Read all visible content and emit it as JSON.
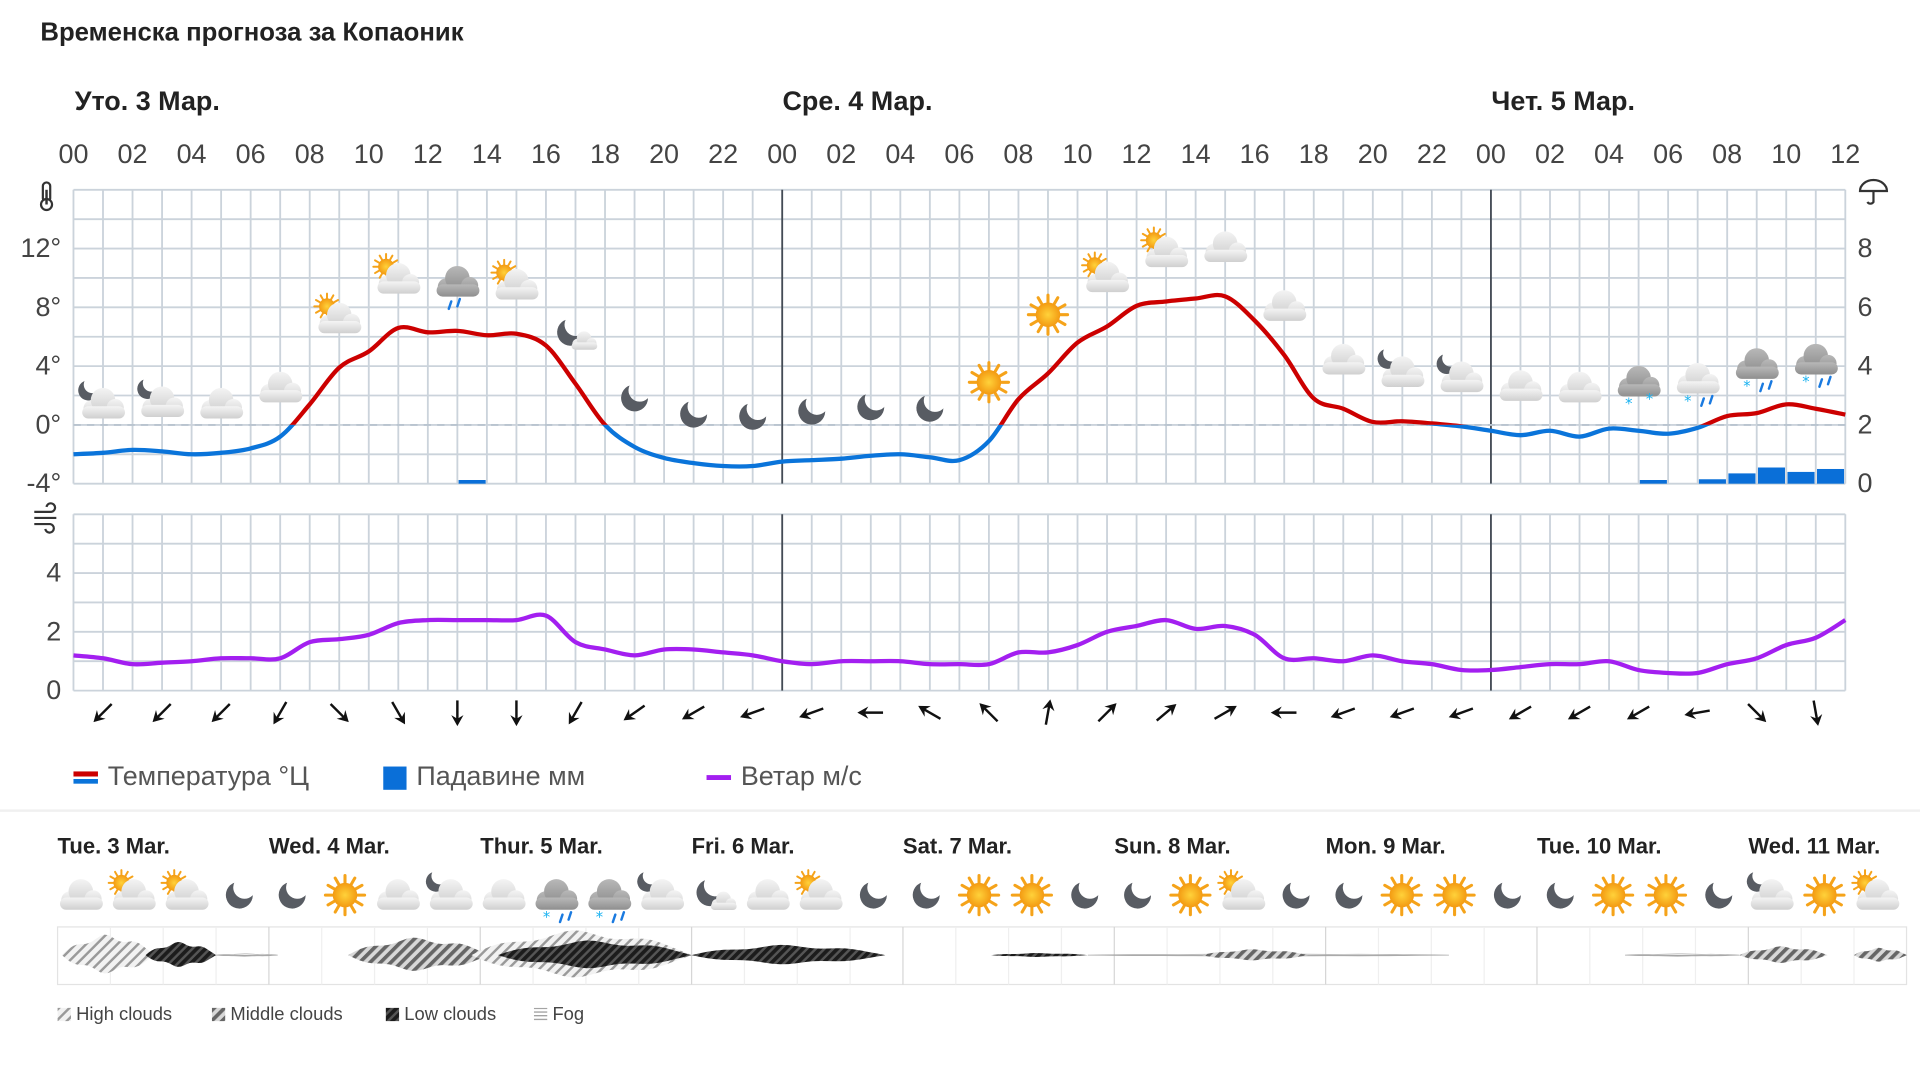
{
  "title": "Временска прогноза за Копаоник",
  "days": [
    "Уто. 3 Мар.",
    "Сре. 4 Мар.",
    "Чет. 5 Мар."
  ],
  "hour_labels": [
    "00",
    "02",
    "04",
    "06",
    "08",
    "10",
    "12",
    "14",
    "16",
    "18",
    "20",
    "22",
    "00",
    "02",
    "04",
    "06",
    "08",
    "10",
    "12",
    "14",
    "16",
    "18",
    "20",
    "22",
    "00",
    "02",
    "04",
    "06",
    "08",
    "10",
    "12"
  ],
  "temp_axis": {
    "labels": [
      "12°",
      "8°",
      "4°",
      "0°",
      "-4°"
    ],
    "values": [
      12,
      8,
      4,
      0,
      -4
    ]
  },
  "precip_axis": {
    "labels": [
      "8",
      "6",
      "4",
      "2",
      "0"
    ],
    "values": [
      8,
      6,
      4,
      2,
      0
    ]
  },
  "wind_axis": {
    "labels": [
      "4",
      "2",
      "0"
    ],
    "values": [
      4,
      2,
      0
    ]
  },
  "colors": {
    "temp_positive": "#cc0000",
    "temp_negative": "#0a74da",
    "precip": "#0a6fd8",
    "wind": "#a31ff0",
    "grid": "#cbd3db",
    "day_line": "#444b55"
  },
  "chart_data": {
    "type": "line",
    "x_unit": "hour from Уто. 3 Мар. 00",
    "hours": [
      0,
      1,
      2,
      3,
      4,
      5,
      6,
      7,
      8,
      9,
      10,
      11,
      12,
      13,
      14,
      15,
      16,
      17,
      18,
      19,
      20,
      21,
      22,
      23,
      24,
      25,
      26,
      27,
      28,
      29,
      30,
      31,
      32,
      33,
      34,
      35,
      36,
      37,
      38,
      39,
      40,
      41,
      42,
      43,
      44,
      45,
      46,
      47,
      48,
      49,
      50,
      51,
      52,
      53,
      54,
      55,
      56,
      57,
      58,
      59,
      60
    ],
    "temperature_c": [
      -2.0,
      -1.9,
      -1.7,
      -1.8,
      -2.0,
      -1.9,
      -1.6,
      -0.8,
      1.4,
      3.9,
      5.0,
      6.6,
      6.3,
      6.4,
      6.1,
      6.2,
      5.4,
      2.8,
      0.0,
      -1.5,
      -2.25,
      -2.6,
      -2.8,
      -2.8,
      -2.5,
      -2.4,
      -2.3,
      -2.1,
      -2.0,
      -2.2,
      -2.4,
      -1.1,
      1.75,
      3.5,
      5.6,
      6.7,
      8.1,
      8.4,
      8.6,
      8.75,
      7.1,
      4.75,
      1.8,
      1.1,
      0.2,
      0.25,
      0.1,
      -0.1,
      -0.4,
      -0.7,
      -0.4,
      -0.8,
      -0.25,
      -0.4,
      -0.6,
      -0.2,
      0.6,
      0.8,
      1.4,
      1.1,
      0.7
    ],
    "precipitation_mm": [
      {
        "hour": 13,
        "value": 0.1
      },
      {
        "hour": 53,
        "value": 0.05
      },
      {
        "hour": 55,
        "value": 0.15
      },
      {
        "hour": 56,
        "value": 0.35
      },
      {
        "hour": 57,
        "value": 0.55
      },
      {
        "hour": 58,
        "value": 0.4
      },
      {
        "hour": 59,
        "value": 0.5
      }
    ],
    "wind_ms": [
      1.2,
      1.1,
      0.9,
      0.95,
      1.0,
      1.1,
      1.1,
      1.1,
      1.65,
      1.75,
      1.9,
      2.3,
      2.4,
      2.4,
      2.4,
      2.4,
      2.55,
      1.65,
      1.4,
      1.2,
      1.4,
      1.4,
      1.3,
      1.2,
      1.0,
      0.9,
      1.0,
      1.0,
      1.0,
      0.9,
      0.9,
      0.9,
      1.3,
      1.3,
      1.55,
      2.0,
      2.2,
      2.4,
      2.1,
      2.2,
      1.9,
      1.1,
      1.1,
      1.0,
      1.2,
      1.0,
      0.9,
      0.7,
      0.7,
      0.8,
      0.9,
      0.9,
      1.0,
      0.7,
      0.6,
      0.6,
      0.9,
      1.1,
      1.55,
      1.8,
      2.4
    ],
    "temp_ylim": [
      -4,
      14
    ],
    "precip_ylim": [
      0,
      9
    ],
    "wind_ylim": [
      0,
      6
    ],
    "grid": true
  },
  "wind_arrows_deg": [
    225,
    225,
    225,
    210,
    135,
    150,
    180,
    180,
    210,
    235,
    240,
    250,
    250,
    270,
    300,
    315,
    10,
    45,
    50,
    60,
    270,
    250,
    250,
    250,
    240,
    240,
    240,
    260,
    135,
    170
  ],
  "hour_icons": [
    "night-cloudy",
    "night-cloudy",
    "cloudy",
    "cloudy",
    "partly-sunny",
    "partly-sunny",
    "cloud-rain",
    "partly-sunny",
    "night-partly",
    "moon",
    "moon",
    "moon",
    "moon",
    "moon",
    "moon",
    "sun",
    "sun",
    "partly-sunny",
    "partly-sunny",
    "cloudy",
    "cloudy",
    "cloudy",
    "night-cloudy",
    "night-cloudy",
    "cloudy",
    "cloudy",
    "cloud-snow",
    "cloud-sleet",
    "dark-cloud-sleet",
    "dark-cloud-sleet"
  ],
  "legend": {
    "temperature": "Температура °Ц",
    "precipitation": "Падавине мм",
    "wind": "Ветар м/с"
  },
  "outlook": {
    "days": [
      "Tue. 3 Mar.",
      "Wed. 4 Mar.",
      "Thur. 5 Mar.",
      "Fri. 6 Mar.",
      "Sat. 7 Mar.",
      "Sun. 8 Mar.",
      "Mon. 9 Mar.",
      "Tue. 10 Mar.",
      "Wed. 11 Mar."
    ],
    "icons": [
      "cloudy",
      "partly-sunny",
      "partly-sunny",
      "moon",
      "moon",
      "sun",
      "cloudy",
      "night-cloudy",
      "cloudy",
      "dark-cloud-snow",
      "dark-cloud-snow",
      "night-cloudy",
      "night-partly",
      "cloudy",
      "partly-sunny",
      "moon",
      "moon",
      "sun",
      "sun",
      "moon",
      "moon",
      "sun",
      "partly-sunny",
      "moon",
      "moon",
      "sun",
      "sun",
      "moon",
      "moon",
      "sun",
      "sun",
      "moon",
      "night-cloudy",
      "sun",
      "partly-sunny"
    ],
    "cloud_layers": [
      {
        "layer": "high",
        "start_hour": 0.5,
        "end_hour": 11,
        "amount": 0.7
      },
      {
        "layer": "low",
        "start_hour": 10,
        "end_hour": 18,
        "amount": 0.45
      },
      {
        "layer": "fog",
        "start_hour": 18,
        "end_hour": 25,
        "amount": 0.03
      },
      {
        "layer": "middle",
        "start_hour": 33,
        "end_hour": 49,
        "amount": 0.6
      },
      {
        "layer": "high",
        "start_hour": 47,
        "end_hour": 72,
        "amount": 0.85
      },
      {
        "layer": "low",
        "start_hour": 50,
        "end_hour": 72,
        "amount": 0.5
      },
      {
        "layer": "low",
        "start_hour": 72,
        "end_hour": 94,
        "amount": 0.35
      },
      {
        "layer": "low",
        "start_hour": 106,
        "end_hour": 117,
        "amount": 0.07
      },
      {
        "layer": "fog",
        "start_hour": 117,
        "end_hour": 158,
        "amount": 0.03
      },
      {
        "layer": "middle",
        "start_hour": 130,
        "end_hour": 142,
        "amount": 0.2
      },
      {
        "layer": "fog",
        "start_hour": 178,
        "end_hour": 191,
        "amount": 0.03
      },
      {
        "layer": "middle",
        "start_hour": 191,
        "end_hour": 201,
        "amount": 0.3
      },
      {
        "layer": "middle",
        "start_hour": 204,
        "end_hour": 210,
        "amount": 0.25
      }
    ],
    "legend": {
      "high": "High clouds",
      "middle": "Middle clouds",
      "low": "Low clouds",
      "fog": "Fog"
    }
  }
}
